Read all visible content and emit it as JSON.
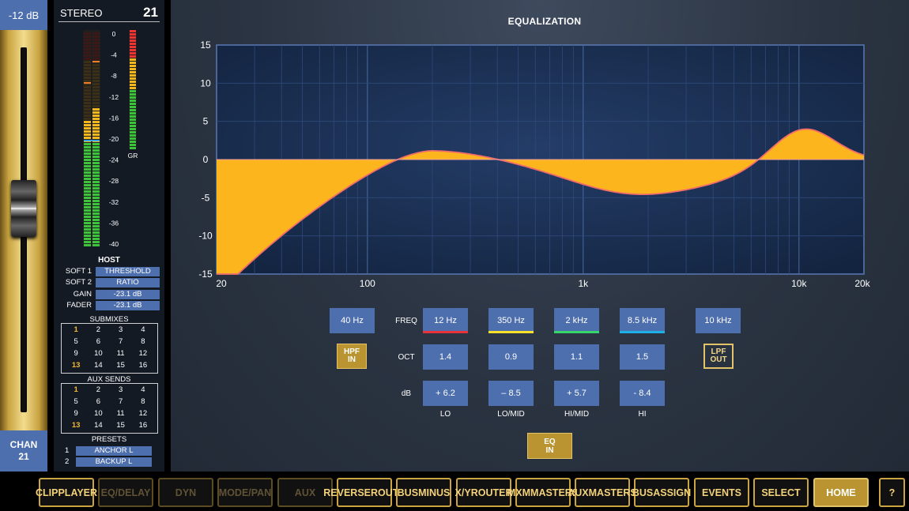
{
  "fader": {
    "db_label": "-12 dB",
    "chan_label": "CHAN",
    "chan_number": "21"
  },
  "strip": {
    "name": "STEREO",
    "number": "21",
    "meter_scale": [
      "0",
      "-4",
      "-8",
      "-12",
      "-16",
      "-20",
      "-24",
      "-28",
      "-32",
      "-36",
      "-40"
    ],
    "gr_label": "GR",
    "host": {
      "title": "HOST",
      "rows": [
        {
          "label": "SOFT 1",
          "value": "THRESHOLD"
        },
        {
          "label": "SOFT 2",
          "value": "RATIO"
        },
        {
          "label": "GAIN",
          "value": "-23.1 dB"
        },
        {
          "label": "FADER",
          "value": "-23.1 dB"
        }
      ]
    },
    "submixes": {
      "title": "SUBMIXES",
      "numbers": [
        "1",
        "2",
        "3",
        "4",
        "5",
        "6",
        "7",
        "8",
        "9",
        "10",
        "11",
        "12",
        "13",
        "14",
        "15",
        "16"
      ],
      "highlighted": [
        "1",
        "13"
      ]
    },
    "aux_sends": {
      "title": "AUX SENDS",
      "numbers": [
        "1",
        "2",
        "3",
        "4",
        "5",
        "6",
        "7",
        "8",
        "9",
        "10",
        "11",
        "12",
        "13",
        "14",
        "15",
        "16"
      ],
      "highlighted": [
        "1",
        "13"
      ]
    },
    "presets": {
      "title": "PRESETS",
      "items": [
        {
          "num": "1",
          "name": "ANCHOR L"
        },
        {
          "num": "2",
          "name": "BACKUP L"
        }
      ]
    }
  },
  "eq": {
    "title": "EQUALIZATION",
    "y_ticks": [
      "15",
      "10",
      "5",
      "0",
      "-5",
      "-10",
      "-15"
    ],
    "x_ticks": [
      "20",
      "100",
      "1k",
      "10k",
      "20k"
    ],
    "hpf": {
      "freq": "40 Hz",
      "button_line1": "HPF",
      "button_line2": "IN"
    },
    "lpf": {
      "freq": "10 kHz",
      "button_line1": "LPF",
      "button_line2": "OUT"
    },
    "row_labels": {
      "freq": "FREQ",
      "oct": "OCT",
      "db": "dB"
    },
    "bands": [
      {
        "name": "LO",
        "freq": "12 Hz",
        "oct": "1.4",
        "db": "+ 6.2",
        "color": "#e8323a"
      },
      {
        "name": "LO/MID",
        "freq": "350 Hz",
        "oct": "0.9",
        "db": "– 8.5",
        "color": "#f6e02a"
      },
      {
        "name": "HI/MID",
        "freq": "2 kHz",
        "oct": "1.1",
        "db": "+ 5.7",
        "color": "#37d66a"
      },
      {
        "name": "HI",
        "freq": "8.5 kHz",
        "oct": "1.5",
        "db": "- 8.4",
        "color": "#1fb0ea"
      }
    ],
    "eq_in": {
      "line1": "EQ",
      "line2": "IN"
    },
    "curve_color": "#fcb51c"
  },
  "nav": [
    {
      "line1": "CLIP",
      "line2": "PLAYER",
      "state": "normal"
    },
    {
      "line1": "EQ/DELAY",
      "line2": "",
      "state": "dim"
    },
    {
      "line1": "DYN",
      "line2": "",
      "state": "dim"
    },
    {
      "line1": "MODE/",
      "line2": "PAN",
      "state": "dim"
    },
    {
      "line1": "AUX",
      "line2": "",
      "state": "dim"
    },
    {
      "line1": "REVERSE",
      "line2": "ROUTE",
      "state": "normal"
    },
    {
      "line1": "BUS",
      "line2": "MINUS",
      "state": "normal"
    },
    {
      "line1": "X/Y",
      "line2": "ROUTER",
      "state": "normal"
    },
    {
      "line1": "MXM",
      "line2": "MASTERS",
      "state": "normal"
    },
    {
      "line1": "AUX",
      "line2": "MASTERS",
      "state": "normal"
    },
    {
      "line1": "BUS",
      "line2": "ASSIGN",
      "state": "normal"
    },
    {
      "line1": "EVENTS",
      "line2": "",
      "state": "normal"
    },
    {
      "line1": "SELECT",
      "line2": "",
      "state": "normal"
    },
    {
      "line1": "HOME",
      "line2": "",
      "state": "active"
    },
    {
      "line1": "?",
      "line2": "",
      "state": "normal"
    }
  ]
}
